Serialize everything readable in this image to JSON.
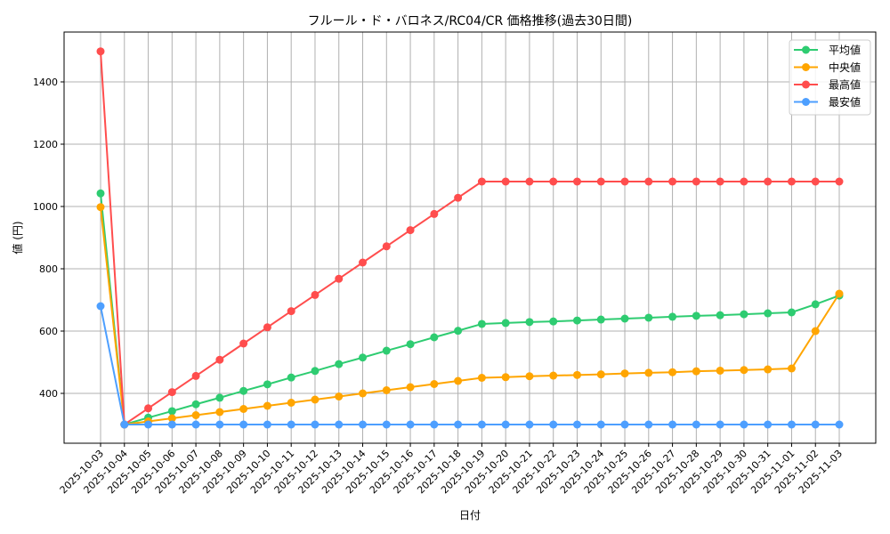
{
  "chart_data": {
    "type": "line",
    "title": "フルール・ド・バロネス/RC04/CR 価格推移(過去30日間)",
    "xlabel": "日付",
    "ylabel": "値 (円)",
    "x": [
      "2025-10-03",
      "2025-10-04",
      "2025-10-05",
      "2025-10-06",
      "2025-10-07",
      "2025-10-08",
      "2025-10-09",
      "2025-10-10",
      "2025-10-11",
      "2025-10-12",
      "2025-10-13",
      "2025-10-14",
      "2025-10-15",
      "2025-10-16",
      "2025-10-17",
      "2025-10-18",
      "2025-10-19",
      "2025-10-20",
      "2025-10-21",
      "2025-10-22",
      "2025-10-23",
      "2025-10-24",
      "2025-10-25",
      "2025-10-26",
      "2025-10-27",
      "2025-10-28",
      "2025-10-29",
      "2025-10-30",
      "2025-10-31",
      "2025-11-01",
      "2025-11-02",
      "2025-11-03"
    ],
    "yticks": [
      400,
      600,
      800,
      1000,
      1200,
      1400
    ],
    "ylim": [
      237,
      1567
    ],
    "grid": true,
    "legend_position": "upper right",
    "series": [
      {
        "name": "平均値",
        "color": "#2ecc71",
        "values": [
          1042,
          300,
          322,
          343,
          365,
          386,
          408,
          429,
          451,
          472,
          494,
          515,
          537,
          558,
          580,
          601,
          623,
          626,
          629,
          631,
          634,
          637,
          640,
          643,
          646,
          649,
          651,
          654,
          657,
          660,
          686,
          714
        ]
      },
      {
        "name": "中央値",
        "color": "#ffa500",
        "values": [
          998,
          300,
          310,
          320,
          330,
          340,
          350,
          360,
          370,
          380,
          390,
          400,
          410,
          420,
          430,
          440,
          450,
          452,
          455,
          457,
          459,
          461,
          464,
          466,
          468,
          471,
          473,
          475,
          477,
          480,
          600,
          720
        ]
      },
      {
        "name": "最高値",
        "color": "#ff4d4d",
        "values": [
          1498,
          300,
          352,
          404,
          456,
          508,
          560,
          612,
          664,
          716,
          768,
          820,
          872,
          924,
          976,
          1028,
          1080,
          1080,
          1080,
          1080,
          1080,
          1080,
          1080,
          1080,
          1080,
          1080,
          1080,
          1080,
          1080,
          1080,
          1080,
          1080
        ]
      },
      {
        "name": "最安値",
        "color": "#4d9fff",
        "values": [
          680,
          300,
          300,
          300,
          300,
          300,
          300,
          300,
          300,
          300,
          300,
          300,
          300,
          300,
          300,
          300,
          300,
          300,
          300,
          300,
          300,
          300,
          300,
          300,
          300,
          300,
          300,
          300,
          300,
          300,
          300,
          300
        ]
      }
    ]
  }
}
